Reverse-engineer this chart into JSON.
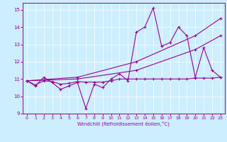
{
  "bg_color": "#cceeff",
  "line_color": "#990099",
  "xlabel": "Windchill (Refroidissement éolien,°C)",
  "xlim_min": -0.5,
  "xlim_max": 23.5,
  "ylim_min": 9,
  "ylim_max": 15.4,
  "yticks": [
    9,
    10,
    11,
    12,
    13,
    14,
    15
  ],
  "xticks": [
    0,
    1,
    2,
    3,
    4,
    5,
    6,
    7,
    8,
    9,
    10,
    11,
    12,
    13,
    14,
    15,
    16,
    17,
    18,
    19,
    20,
    21,
    22,
    23
  ],
  "series1_x": [
    0,
    1,
    2,
    3,
    4,
    5,
    6,
    7,
    8,
    9,
    10,
    11,
    12,
    13,
    14,
    15,
    16,
    17,
    18,
    19,
    20,
    21,
    22,
    23
  ],
  "series1_y": [
    10.9,
    10.6,
    11.1,
    10.8,
    10.4,
    10.6,
    10.8,
    9.3,
    10.7,
    10.5,
    11.0,
    11.3,
    10.9,
    13.7,
    14.0,
    15.1,
    12.9,
    13.1,
    14.0,
    13.5,
    11.1,
    12.8,
    11.5,
    11.1
  ],
  "series2_x": [
    0,
    6,
    13,
    20,
    23
  ],
  "series2_y": [
    10.9,
    11.1,
    12.0,
    13.5,
    14.5
  ],
  "series3_x": [
    0,
    6,
    13,
    20,
    23
  ],
  "series3_y": [
    10.9,
    11.0,
    11.5,
    12.7,
    13.5
  ],
  "flat_x": [
    0,
    1,
    2,
    3,
    4,
    5,
    6,
    7,
    8,
    9,
    10,
    11,
    12,
    13,
    14,
    15,
    16,
    17,
    18,
    19,
    20,
    21,
    22,
    23
  ],
  "flat_y": [
    10.9,
    10.65,
    10.9,
    10.85,
    10.7,
    10.75,
    10.85,
    10.82,
    10.82,
    10.82,
    10.9,
    11.0,
    11.0,
    11.0,
    11.0,
    11.0,
    11.0,
    11.0,
    11.0,
    11.0,
    11.05,
    11.05,
    11.05,
    11.1
  ]
}
